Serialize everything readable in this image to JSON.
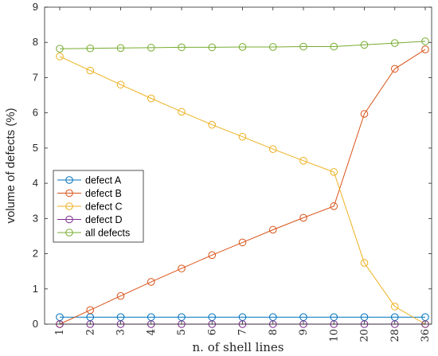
{
  "chart_data": {
    "type": "line",
    "xlabel": "n. of shell lines",
    "ylabel": "volume of defects (%)",
    "categories": [
      "1",
      "2",
      "3",
      "4",
      "5",
      "6",
      "7",
      "8",
      "9",
      "10",
      "20",
      "28",
      "36"
    ],
    "ylim": [
      0,
      9
    ],
    "yticks": [
      0,
      1,
      2,
      3,
      4,
      5,
      6,
      7,
      8,
      9
    ],
    "legend_position": "middle-left",
    "grid": false,
    "series": [
      {
        "name": "defect A",
        "color": "#0072BD",
        "values": [
          0.2,
          0.2,
          0.2,
          0.2,
          0.2,
          0.2,
          0.2,
          0.2,
          0.2,
          0.2,
          0.2,
          0.2,
          0.2
        ]
      },
      {
        "name": "defect B",
        "color": "#D95319",
        "values": [
          0.0,
          0.4,
          0.8,
          1.2,
          1.58,
          1.96,
          2.32,
          2.68,
          3.02,
          3.35,
          5.97,
          7.25,
          7.8
        ]
      },
      {
        "name": "defect C",
        "color": "#EDB120",
        "values": [
          7.6,
          7.2,
          6.8,
          6.41,
          6.03,
          5.66,
          5.32,
          4.97,
          4.64,
          4.32,
          1.74,
          0.5,
          0.0
        ]
      },
      {
        "name": "defect D",
        "color": "#7E2F8E",
        "values": [
          0,
          0,
          0,
          0,
          0,
          0,
          0,
          0,
          0,
          0,
          0,
          0,
          0
        ]
      },
      {
        "name": "all defects",
        "color": "#77AC30",
        "values": [
          7.82,
          7.83,
          7.84,
          7.85,
          7.86,
          7.86,
          7.87,
          7.87,
          7.88,
          7.88,
          7.93,
          7.98,
          8.03
        ]
      }
    ]
  }
}
